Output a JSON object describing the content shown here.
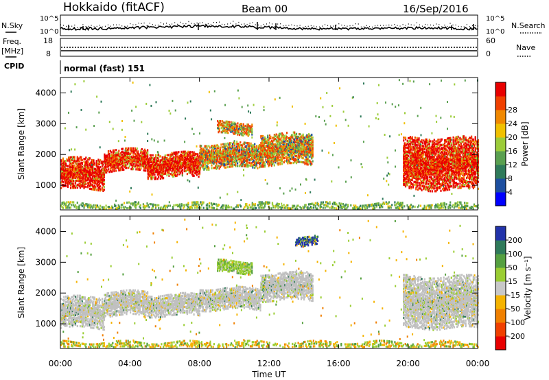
{
  "header": {
    "station": "Hokkaido (fitACF)",
    "beam": "Beam 00",
    "date": "16/Sep/2016"
  },
  "top_panels": {
    "nsky_label": "N.Sky",
    "nsky_left_ticks": [
      "10^5",
      "10^0"
    ],
    "nsky_right_ticks": [
      "10^5",
      "10^0"
    ],
    "nsearch_label": "N.Search",
    "freq_label": "Freq.",
    "freq_unit": "[MHz]",
    "freq_left_ticks": [
      "18",
      "8"
    ],
    "nave_right_ticks": [
      "60",
      "0"
    ],
    "nave_label": "Nave",
    "cpid_label": "CPID",
    "cpid_value": "normal (fast) 151"
  },
  "colors": {
    "power_scale": [
      "#0000ff",
      "#1d4fa0",
      "#2f7a5a",
      "#5aa050",
      "#9ccc3a",
      "#f0c000",
      "#f08800",
      "#f04000",
      "#e80000"
    ],
    "velocity_scale": [
      "#2233aa",
      "#2f7a5a",
      "#55a040",
      "#9acd32",
      "#c8c8c8",
      "#f5b300",
      "#f08000",
      "#f04000",
      "#e80000"
    ],
    "ground_scatter": "#c0c0c0"
  },
  "chart_data": [
    {
      "type": "heatmap",
      "name": "power",
      "ylabel": "Slant Range [km]",
      "xlabel": "Time UT",
      "x_ticks": [
        "00:00",
        "04:00",
        "08:00",
        "12:00",
        "16:00",
        "20:00",
        "00:00"
      ],
      "y_ticks": [
        1000,
        2000,
        3000,
        4000
      ],
      "ylim": [
        200,
        4500
      ],
      "colorbar_label": "Power [dB]",
      "colorbar_ticks": [
        4,
        8,
        12,
        16,
        20,
        24,
        28
      ],
      "bands": [
        {
          "t0": 0.0,
          "t1": 2.5,
          "r0": 900,
          "r1": 1900,
          "level": "strong"
        },
        {
          "t0": 2.5,
          "t1": 5.0,
          "r0": 1500,
          "r1": 2200,
          "level": "strong"
        },
        {
          "t0": 5.0,
          "t1": 8.0,
          "r0": 1300,
          "r1": 2100,
          "level": "strong"
        },
        {
          "t0": 8.0,
          "t1": 11.5,
          "r0": 1600,
          "r1": 2400,
          "level": "medium"
        },
        {
          "t0": 11.5,
          "t1": 14.5,
          "r0": 1700,
          "r1": 2700,
          "level": "medium"
        },
        {
          "t0": 9.0,
          "t1": 11.0,
          "r0": 2700,
          "r1": 3100,
          "level": "medium"
        },
        {
          "t0": 19.7,
          "t1": 24.0,
          "r0": 900,
          "r1": 2600,
          "level": "strong"
        },
        {
          "t0": 0.0,
          "t1": 24.0,
          "r0": 200,
          "r1": 450,
          "level": "weak"
        }
      ]
    },
    {
      "type": "heatmap",
      "name": "velocity",
      "ylabel": "Slant Range [km]",
      "xlabel": "Time UT",
      "x_ticks": [
        "00:00",
        "04:00",
        "08:00",
        "12:00",
        "16:00",
        "20:00",
        "00:00"
      ],
      "y_ticks": [
        1000,
        2000,
        3000,
        4000
      ],
      "ylim": [
        200,
        4500
      ],
      "colorbar_label": "Velocity [m s⁻¹]",
      "colorbar_ticks": [
        200,
        100,
        50,
        15,
        -15,
        -50,
        -100,
        -200
      ],
      "bands": [
        {
          "t0": 0.0,
          "t1": 2.5,
          "r0": 900,
          "r1": 1900,
          "level": "ground"
        },
        {
          "t0": 2.5,
          "t1": 5.0,
          "r0": 1300,
          "r1": 2100,
          "level": "ground"
        },
        {
          "t0": 5.0,
          "t1": 8.0,
          "r0": 1300,
          "r1": 2000,
          "level": "ground"
        },
        {
          "t0": 8.0,
          "t1": 11.5,
          "r0": 1500,
          "r1": 2200,
          "level": "ground"
        },
        {
          "t0": 11.5,
          "t1": 14.5,
          "r0": 1800,
          "r1": 2700,
          "level": "ground"
        },
        {
          "t0": 9.0,
          "t1": 11.0,
          "r0": 2700,
          "r1": 3100,
          "level": "green"
        },
        {
          "t0": 19.7,
          "t1": 24.0,
          "r0": 900,
          "r1": 2600,
          "level": "ground"
        },
        {
          "t0": 13.5,
          "t1": 14.8,
          "r0": 3600,
          "r1": 3900,
          "level": "blue"
        },
        {
          "t0": 0.0,
          "t1": 24.0,
          "r0": 200,
          "r1": 450,
          "level": "weak"
        }
      ]
    }
  ]
}
